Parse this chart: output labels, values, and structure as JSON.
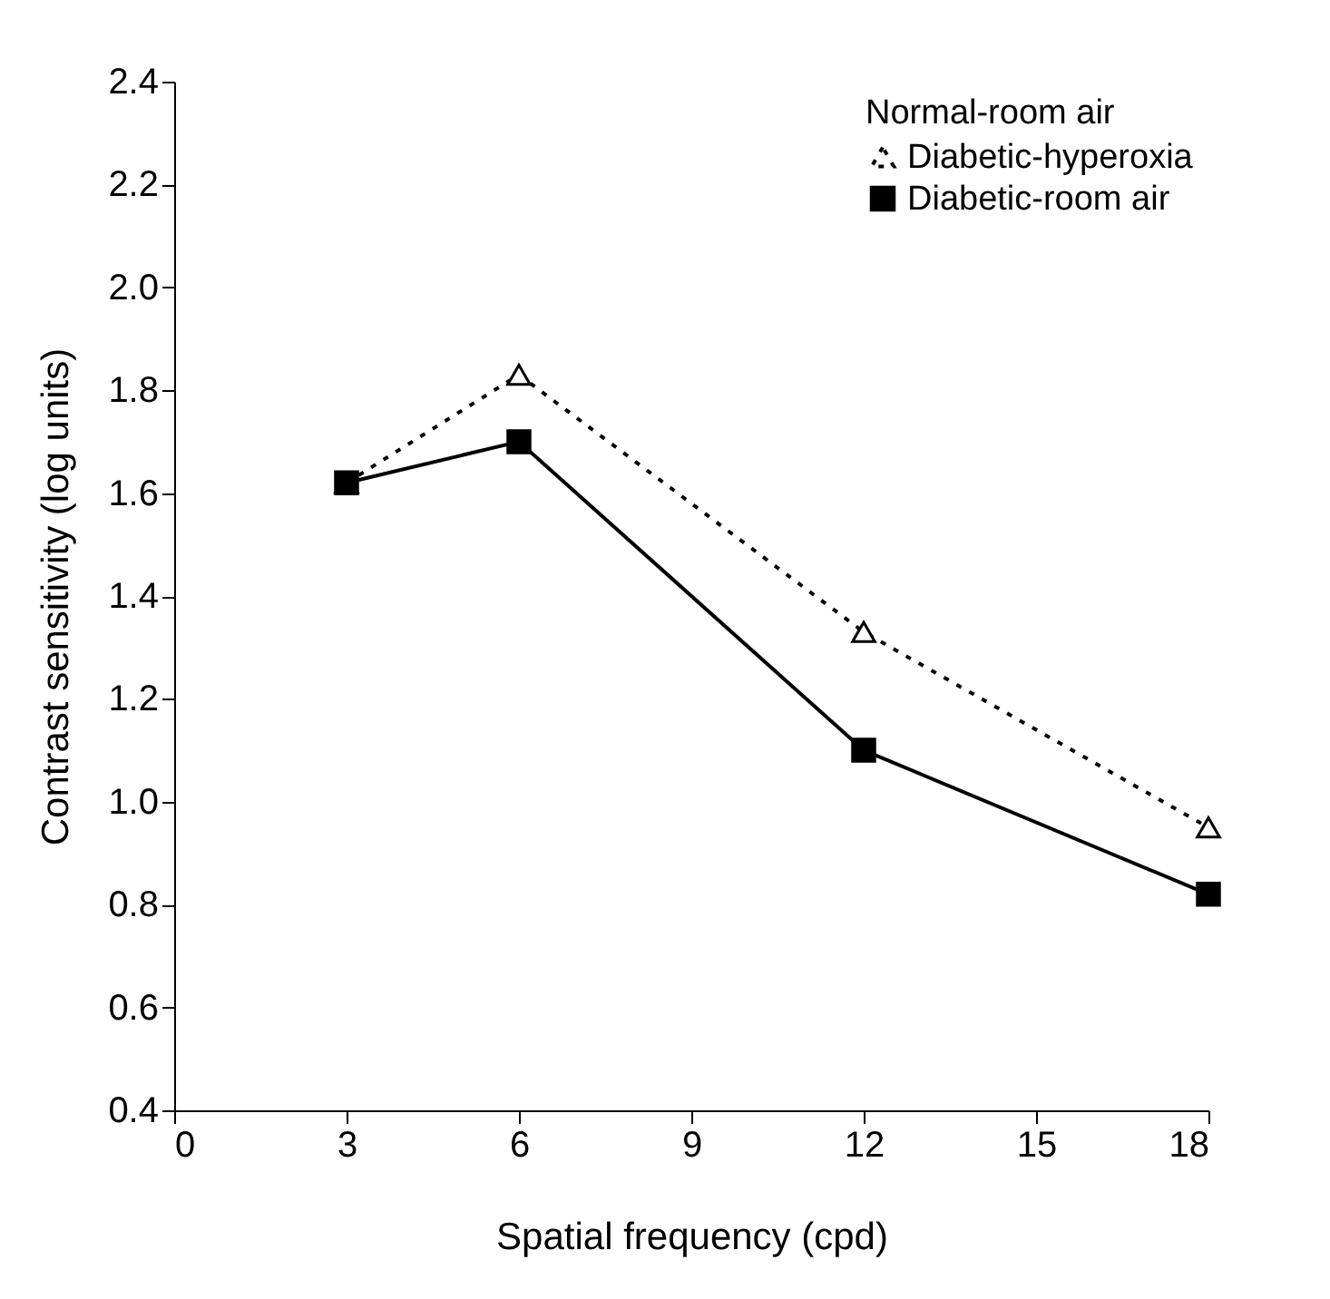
{
  "chart_data": {
    "type": "line",
    "xlabel": "Spatial frequency (cpd)",
    "ylabel": "Contrast sensitivity (log units)",
    "legend_title": "Normal-room air",
    "legend": "top right",
    "grid": false,
    "x": [
      3,
      6,
      12,
      18
    ],
    "xlim": [
      0,
      18
    ],
    "xticks": [
      0,
      3,
      6,
      9,
      12,
      15,
      18
    ],
    "ylim": [
      0.4,
      2.4
    ],
    "yticks": [
      {
        "value": 0.4,
        "label": "0.4"
      },
      {
        "value": 0.6,
        "label": "0.6"
      },
      {
        "value": 0.8,
        "label": "0.8"
      },
      {
        "value": 1.0,
        "label": "1.0"
      },
      {
        "value": 1.2,
        "label": "1.2"
      },
      {
        "value": 1.4,
        "label": "1.4"
      },
      {
        "value": 1.6,
        "label": "1.6"
      },
      {
        "value": 1.8,
        "label": "1.8"
      },
      {
        "value": 2.0,
        "label": "2.0"
      },
      {
        "value": 2.2,
        "label": "2.2"
      },
      {
        "value": 2.4,
        "label": "2.4"
      }
    ],
    "series": [
      {
        "name": "Diabetic-hyperoxia",
        "color": "#000000",
        "line_style": "dotted",
        "marker": "triangle",
        "values": [
          1.62,
          1.83,
          1.33,
          0.95
        ]
      },
      {
        "name": "Diabetic-room air",
        "color": "#000000",
        "line_style": "solid",
        "marker": "square",
        "values": [
          1.62,
          1.7,
          1.1,
          0.82
        ]
      }
    ]
  }
}
